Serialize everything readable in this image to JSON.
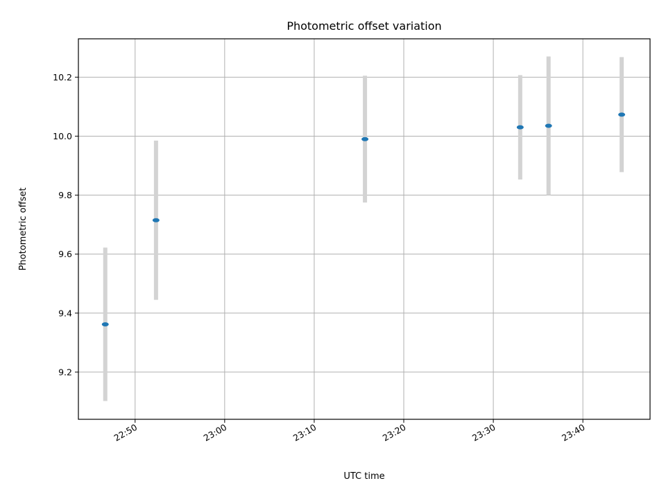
{
  "chart_data": {
    "type": "scatter",
    "title": "Photometric offset variation",
    "xlabel": "UTC time",
    "ylabel": "Photometric offset",
    "x_ticks": [
      "22:50",
      "23:00",
      "23:10",
      "23:20",
      "23:30",
      "23:40"
    ],
    "y_ticks": [
      "9.2",
      "9.4",
      "9.6",
      "9.8",
      "10.0",
      "10.2"
    ],
    "xlim": [
      "22:43:40",
      "23:47:30"
    ],
    "ylim": [
      9.04,
      10.33
    ],
    "grid": true,
    "points": [
      {
        "x": "22:46:40",
        "y": 9.362,
        "err": 0.26
      },
      {
        "x": "22:52:20",
        "y": 9.715,
        "err": 0.27
      },
      {
        "x": "23:15:40",
        "y": 9.99,
        "err": 0.215
      },
      {
        "x": "23:33:00",
        "y": 10.03,
        "err": 0.177
      },
      {
        "x": "23:36:10",
        "y": 10.035,
        "err": 0.235
      },
      {
        "x": "23:44:20",
        "y": 10.073,
        "err": 0.195
      }
    ],
    "colors": {
      "marker": "#1f77b4",
      "errorbar": "#d3d3d3",
      "grid": "#b0b0b0"
    }
  }
}
